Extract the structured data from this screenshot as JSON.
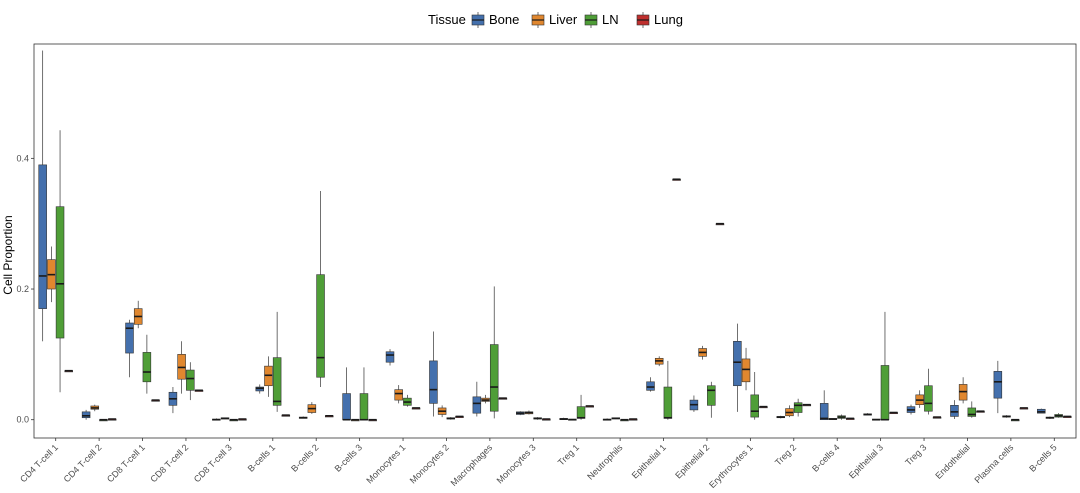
{
  "chart_data": {
    "type": "boxplot",
    "title": "",
    "xlabel": "",
    "ylabel": "Cell Proportion",
    "ylim": [
      -0.028,
      0.575
    ],
    "yticks": [
      0.0,
      0.2,
      0.4
    ],
    "ytick_labels": [
      "0.0",
      "0.2",
      "0.4"
    ],
    "legend": {
      "title": "Tissue",
      "position": "top",
      "entries": [
        "Bone",
        "Liver",
        "LN",
        "Lung"
      ]
    },
    "colors": {
      "Bone": "#4470ad",
      "Liver": "#e0872f",
      "LN": "#4f9e37",
      "Lung": "#bf2f2e"
    },
    "categories": [
      "CD4 T-cell 1",
      "CD4 T-cell 2",
      "CD8 T-cell 1",
      "CD8 T-cell 2",
      "CD8 T-cell 3",
      "B-cells 1",
      "B-cells 2",
      "B-cells 3",
      "Monocytes 1",
      "Monocytes 2",
      "Macrophages",
      "Monocytes 3",
      "Treg 1",
      "Neutrophils",
      "Epithelial 1",
      "Epithelial 2",
      "Erythrocytes 1",
      "Treg 2",
      "B-cells 4",
      "Epithelial 3",
      "Treg 3",
      "Endothelial",
      "Plasma cells",
      "B-cells 5"
    ],
    "series": [
      {
        "name": "Bone",
        "boxes": [
          {
            "category": "CD4 T-cell 1",
            "min": 0.12,
            "q1": 0.17,
            "median": 0.22,
            "q3": 0.39,
            "max": 0.565
          },
          {
            "category": "CD4 T-cell 2",
            "min": 0.0,
            "q1": 0.003,
            "median": 0.006,
            "q3": 0.012,
            "max": 0.015
          },
          {
            "category": "CD8 T-cell 1",
            "min": 0.065,
            "q1": 0.102,
            "median": 0.14,
            "q3": 0.148,
            "max": 0.153
          },
          {
            "category": "CD8 T-cell 2",
            "min": 0.01,
            "q1": 0.022,
            "median": 0.032,
            "q3": 0.042,
            "max": 0.05
          },
          {
            "category": "CD8 T-cell 3",
            "min": 0.0,
            "q1": 0.0,
            "median": 0.0,
            "q3": 0.001,
            "max": 0.002
          },
          {
            "category": "B-cells 1",
            "min": 0.04,
            "q1": 0.044,
            "median": 0.048,
            "q3": 0.05,
            "max": 0.054
          },
          {
            "category": "B-cells 2",
            "min": 0.002,
            "q1": 0.002,
            "median": 0.003,
            "q3": 0.004,
            "max": 0.005
          },
          {
            "category": "B-cells 3",
            "min": 0.0,
            "q1": 0.0,
            "median": 0.0,
            "q3": 0.04,
            "max": 0.08
          },
          {
            "category": "Monocytes 1",
            "min": 0.083,
            "q1": 0.088,
            "median": 0.099,
            "q3": 0.104,
            "max": 0.108
          },
          {
            "category": "Monocytes 2",
            "min": 0.005,
            "q1": 0.025,
            "median": 0.046,
            "q3": 0.09,
            "max": 0.135
          },
          {
            "category": "Macrophages",
            "min": 0.005,
            "q1": 0.01,
            "median": 0.025,
            "q3": 0.035,
            "max": 0.058
          },
          {
            "category": "Monocytes 3",
            "min": 0.007,
            "q1": 0.008,
            "median": 0.01,
            "q3": 0.012,
            "max": 0.013
          },
          {
            "category": "Treg 1",
            "min": 0.0,
            "q1": 0.0,
            "median": 0.001,
            "q3": 0.002,
            "max": 0.003
          },
          {
            "category": "Neutrophils",
            "min": 0.0,
            "q1": 0.0,
            "median": 0.0,
            "q3": 0.001,
            "max": 0.002
          },
          {
            "category": "Epithelial 1",
            "min": 0.043,
            "q1": 0.045,
            "median": 0.05,
            "q3": 0.058,
            "max": 0.065
          },
          {
            "category": "Epithelial 2",
            "min": 0.012,
            "q1": 0.015,
            "median": 0.023,
            "q3": 0.03,
            "max": 0.037
          },
          {
            "category": "Erythrocytes 1",
            "min": 0.012,
            "q1": 0.052,
            "median": 0.088,
            "q3": 0.12,
            "max": 0.147
          },
          {
            "category": "Treg 2",
            "min": 0.002,
            "q1": 0.003,
            "median": 0.004,
            "q3": 0.005,
            "max": 0.006
          },
          {
            "category": "B-cells 4",
            "min": 0.0,
            "q1": 0.0,
            "median": 0.002,
            "q3": 0.025,
            "max": 0.045
          },
          {
            "category": "Epithelial 3",
            "min": 0.007,
            "q1": 0.007,
            "median": 0.008,
            "q3": 0.009,
            "max": 0.01
          },
          {
            "category": "Treg 3",
            "min": 0.008,
            "q1": 0.011,
            "median": 0.015,
            "q3": 0.02,
            "max": 0.023
          },
          {
            "category": "Endothelial",
            "min": 0.001,
            "q1": 0.005,
            "median": 0.012,
            "q3": 0.022,
            "max": 0.03
          },
          {
            "category": "Plasma cells",
            "min": 0.01,
            "q1": 0.033,
            "median": 0.058,
            "q3": 0.074,
            "max": 0.09
          },
          {
            "category": "B-cells 5",
            "min": 0.01,
            "q1": 0.01,
            "median": 0.012,
            "q3": 0.016,
            "max": 0.017
          }
        ]
      },
      {
        "name": "Liver",
        "boxes": [
          {
            "category": "CD4 T-cell 1",
            "min": 0.18,
            "q1": 0.2,
            "median": 0.222,
            "q3": 0.245,
            "max": 0.265
          },
          {
            "category": "CD4 T-cell 2",
            "min": 0.013,
            "q1": 0.016,
            "median": 0.018,
            "q3": 0.021,
            "max": 0.023
          },
          {
            "category": "CD8 T-cell 1",
            "min": 0.14,
            "q1": 0.146,
            "median": 0.158,
            "q3": 0.17,
            "max": 0.182
          },
          {
            "category": "CD8 T-cell 2",
            "min": 0.04,
            "q1": 0.062,
            "median": 0.08,
            "q3": 0.1,
            "max": 0.12
          },
          {
            "category": "CD8 T-cell 3",
            "min": 0.001,
            "q1": 0.001,
            "median": 0.002,
            "q3": 0.003,
            "max": 0.003
          },
          {
            "category": "B-cells 1",
            "min": 0.035,
            "q1": 0.052,
            "median": 0.068,
            "q3": 0.082,
            "max": 0.097
          },
          {
            "category": "B-cells 2",
            "min": 0.009,
            "q1": 0.011,
            "median": 0.017,
            "q3": 0.023,
            "max": 0.027
          },
          {
            "category": "B-cells 3",
            "min": 0.0,
            "q1": 0.0,
            "median": 0.0,
            "q3": 0.0,
            "max": 0.001
          },
          {
            "category": "Monocytes 1",
            "min": 0.025,
            "q1": 0.03,
            "median": 0.04,
            "q3": 0.046,
            "max": 0.053
          },
          {
            "category": "Monocytes 2",
            "min": 0.004,
            "q1": 0.008,
            "median": 0.013,
            "q3": 0.018,
            "max": 0.022
          },
          {
            "category": "Macrophages",
            "min": 0.025,
            "q1": 0.028,
            "median": 0.03,
            "q3": 0.033,
            "max": 0.038
          },
          {
            "category": "Monocytes 3",
            "min": 0.008,
            "q1": 0.009,
            "median": 0.011,
            "q3": 0.012,
            "max": 0.014
          },
          {
            "category": "Treg 1",
            "min": 0.0,
            "q1": 0.0,
            "median": 0.0,
            "q3": 0.001,
            "max": 0.001
          },
          {
            "category": "Neutrophils",
            "min": 0.001,
            "q1": 0.002,
            "median": 0.002,
            "q3": 0.003,
            "max": 0.003
          },
          {
            "category": "Epithelial 1",
            "min": 0.082,
            "q1": 0.085,
            "median": 0.09,
            "q3": 0.094,
            "max": 0.097
          },
          {
            "category": "Epithelial 2",
            "min": 0.092,
            "q1": 0.097,
            "median": 0.103,
            "q3": 0.109,
            "max": 0.113
          },
          {
            "category": "Erythrocytes 1",
            "min": 0.045,
            "q1": 0.058,
            "median": 0.077,
            "q3": 0.093,
            "max": 0.11
          },
          {
            "category": "Treg 2",
            "min": 0.004,
            "q1": 0.006,
            "median": 0.011,
            "q3": 0.017,
            "max": 0.022
          },
          {
            "category": "B-cells 4",
            "min": 0.0,
            "q1": 0.001,
            "median": 0.001,
            "q3": 0.002,
            "max": 0.002
          },
          {
            "category": "Epithelial 3",
            "min": 0.0,
            "q1": 0.0,
            "median": 0.0,
            "q3": 0.001,
            "max": 0.001
          },
          {
            "category": "Treg 3",
            "min": 0.018,
            "q1": 0.023,
            "median": 0.03,
            "q3": 0.038,
            "max": 0.045
          },
          {
            "category": "Endothelial",
            "min": 0.025,
            "q1": 0.03,
            "median": 0.043,
            "q3": 0.054,
            "max": 0.065
          },
          {
            "category": "Plasma cells",
            "min": 0.003,
            "q1": 0.004,
            "median": 0.005,
            "q3": 0.006,
            "max": 0.007
          },
          {
            "category": "B-cells 5",
            "min": 0.001,
            "q1": 0.002,
            "median": 0.003,
            "q3": 0.004,
            "max": 0.005
          }
        ]
      },
      {
        "name": "LN",
        "boxes": [
          {
            "category": "CD4 T-cell 1",
            "min": 0.042,
            "q1": 0.125,
            "median": 0.208,
            "q3": 0.326,
            "max": 0.443
          },
          {
            "category": "CD4 T-cell 2",
            "min": 0.0,
            "q1": 0.0,
            "median": 0.0,
            "q3": 0.0,
            "max": 0.0
          },
          {
            "category": "CD8 T-cell 1",
            "min": 0.04,
            "q1": 0.058,
            "median": 0.073,
            "q3": 0.103,
            "max": 0.13
          },
          {
            "category": "CD8 T-cell 2",
            "min": 0.03,
            "q1": 0.045,
            "median": 0.063,
            "q3": 0.076,
            "max": 0.088
          },
          {
            "category": "CD8 T-cell 3",
            "min": 0.0,
            "q1": 0.0,
            "median": 0.0,
            "q3": 0.0,
            "max": 0.0
          },
          {
            "category": "B-cells 1",
            "min": 0.012,
            "q1": 0.022,
            "median": 0.028,
            "q3": 0.095,
            "max": 0.165
          },
          {
            "category": "B-cells 2",
            "min": 0.05,
            "q1": 0.065,
            "median": 0.095,
            "q3": 0.222,
            "max": 0.35
          },
          {
            "category": "B-cells 3",
            "min": 0.0,
            "q1": 0.0,
            "median": 0.0,
            "q3": 0.04,
            "max": 0.08
          },
          {
            "category": "Monocytes 1",
            "min": 0.02,
            "q1": 0.022,
            "median": 0.027,
            "q3": 0.033,
            "max": 0.038
          },
          {
            "category": "Monocytes 2",
            "min": 0.0,
            "q1": 0.001,
            "median": 0.002,
            "q3": 0.003,
            "max": 0.004
          },
          {
            "category": "Macrophages",
            "min": 0.002,
            "q1": 0.013,
            "median": 0.05,
            "q3": 0.115,
            "max": 0.204
          },
          {
            "category": "Monocytes 3",
            "min": 0.0,
            "q1": 0.001,
            "median": 0.002,
            "q3": 0.003,
            "max": 0.004
          },
          {
            "category": "Treg 1",
            "min": 0.0,
            "q1": 0.002,
            "median": 0.003,
            "q3": 0.02,
            "max": 0.038
          },
          {
            "category": "Neutrophils",
            "min": 0.0,
            "q1": 0.0,
            "median": 0.0,
            "q3": 0.0,
            "max": 0.0
          },
          {
            "category": "Epithelial 1",
            "min": 0.0,
            "q1": 0.002,
            "median": 0.003,
            "q3": 0.05,
            "max": 0.09
          },
          {
            "category": "Epithelial 2",
            "min": 0.003,
            "q1": 0.022,
            "median": 0.045,
            "q3": 0.052,
            "max": 0.058
          },
          {
            "category": "Erythrocytes 1",
            "min": 0.0,
            "q1": 0.004,
            "median": 0.013,
            "q3": 0.038,
            "max": 0.073
          },
          {
            "category": "Treg 2",
            "min": 0.005,
            "q1": 0.011,
            "median": 0.022,
            "q3": 0.026,
            "max": 0.032
          },
          {
            "category": "B-cells 4",
            "min": 0.0,
            "q1": 0.002,
            "median": 0.004,
            "q3": 0.006,
            "max": 0.008
          },
          {
            "category": "Epithelial 3",
            "min": 0.0,
            "q1": 0.0,
            "median": 0.0,
            "q3": 0.083,
            "max": 0.165
          },
          {
            "category": "Treg 3",
            "min": 0.008,
            "q1": 0.013,
            "median": 0.025,
            "q3": 0.052,
            "max": 0.078
          },
          {
            "category": "Endothelial",
            "min": 0.003,
            "q1": 0.005,
            "median": 0.008,
            "q3": 0.018,
            "max": 0.028
          },
          {
            "category": "Plasma cells",
            "min": 0.0,
            "q1": 0.0,
            "median": 0.0,
            "q3": 0.0,
            "max": 0.0
          },
          {
            "category": "B-cells 5",
            "min": 0.003,
            "q1": 0.004,
            "median": 0.006,
            "q3": 0.008,
            "max": 0.01
          }
        ]
      },
      {
        "name": "Lung",
        "boxes": [
          {
            "category": "CD4 T-cell 1",
            "min": 0.074,
            "q1": 0.074,
            "median": 0.075,
            "q3": 0.075,
            "max": 0.076
          },
          {
            "category": "CD4 T-cell 2",
            "min": 0.001,
            "q1": 0.001,
            "median": 0.001,
            "q3": 0.001,
            "max": 0.001
          },
          {
            "category": "CD8 T-cell 1",
            "min": 0.029,
            "q1": 0.029,
            "median": 0.03,
            "q3": 0.03,
            "max": 0.03
          },
          {
            "category": "CD8 T-cell 2",
            "min": 0.044,
            "q1": 0.044,
            "median": 0.045,
            "q3": 0.045,
            "max": 0.045
          },
          {
            "category": "CD8 T-cell 3",
            "min": 0.001,
            "q1": 0.001,
            "median": 0.001,
            "q3": 0.001,
            "max": 0.001
          },
          {
            "category": "B-cells 1",
            "min": 0.007,
            "q1": 0.007,
            "median": 0.007,
            "q3": 0.007,
            "max": 0.007
          },
          {
            "category": "B-cells 2",
            "min": 0.006,
            "q1": 0.006,
            "median": 0.006,
            "q3": 0.006,
            "max": 0.006
          },
          {
            "category": "B-cells 3",
            "min": 0.0,
            "q1": 0.0,
            "median": 0.0,
            "q3": 0.0,
            "max": 0.0
          },
          {
            "category": "Monocytes 1",
            "min": 0.018,
            "q1": 0.018,
            "median": 0.018,
            "q3": 0.018,
            "max": 0.018
          },
          {
            "category": "Monocytes 2",
            "min": 0.005,
            "q1": 0.005,
            "median": 0.005,
            "q3": 0.005,
            "max": 0.005
          },
          {
            "category": "Macrophages",
            "min": 0.033,
            "q1": 0.033,
            "median": 0.033,
            "q3": 0.033,
            "max": 0.033
          },
          {
            "category": "Monocytes 3",
            "min": 0.001,
            "q1": 0.001,
            "median": 0.001,
            "q3": 0.001,
            "max": 0.001
          },
          {
            "category": "Treg 1",
            "min": 0.021,
            "q1": 0.021,
            "median": 0.021,
            "q3": 0.021,
            "max": 0.021
          },
          {
            "category": "Neutrophils",
            "min": 0.001,
            "q1": 0.001,
            "median": 0.001,
            "q3": 0.001,
            "max": 0.001
          },
          {
            "category": "Epithelial 1",
            "min": 0.368,
            "q1": 0.368,
            "median": 0.368,
            "q3": 0.368,
            "max": 0.368
          },
          {
            "category": "Epithelial 2",
            "min": 0.3,
            "q1": 0.3,
            "median": 0.3,
            "q3": 0.3,
            "max": 0.3
          },
          {
            "category": "Erythrocytes 1",
            "min": 0.02,
            "q1": 0.02,
            "median": 0.02,
            "q3": 0.02,
            "max": 0.02
          },
          {
            "category": "Treg 2",
            "min": 0.023,
            "q1": 0.023,
            "median": 0.023,
            "q3": 0.023,
            "max": 0.023
          },
          {
            "category": "B-cells 4",
            "min": 0.002,
            "q1": 0.002,
            "median": 0.002,
            "q3": 0.002,
            "max": 0.002
          },
          {
            "category": "Epithelial 3",
            "min": 0.011,
            "q1": 0.011,
            "median": 0.011,
            "q3": 0.011,
            "max": 0.011
          },
          {
            "category": "Treg 3",
            "min": 0.004,
            "q1": 0.004,
            "median": 0.004,
            "q3": 0.004,
            "max": 0.004
          },
          {
            "category": "Endothelial",
            "min": 0.013,
            "q1": 0.013,
            "median": 0.013,
            "q3": 0.013,
            "max": 0.013
          },
          {
            "category": "Plasma cells",
            "min": 0.018,
            "q1": 0.018,
            "median": 0.018,
            "q3": 0.018,
            "max": 0.018
          },
          {
            "category": "B-cells 5",
            "min": 0.005,
            "q1": 0.005,
            "median": 0.005,
            "q3": 0.005,
            "max": 0.005
          }
        ]
      }
    ]
  }
}
